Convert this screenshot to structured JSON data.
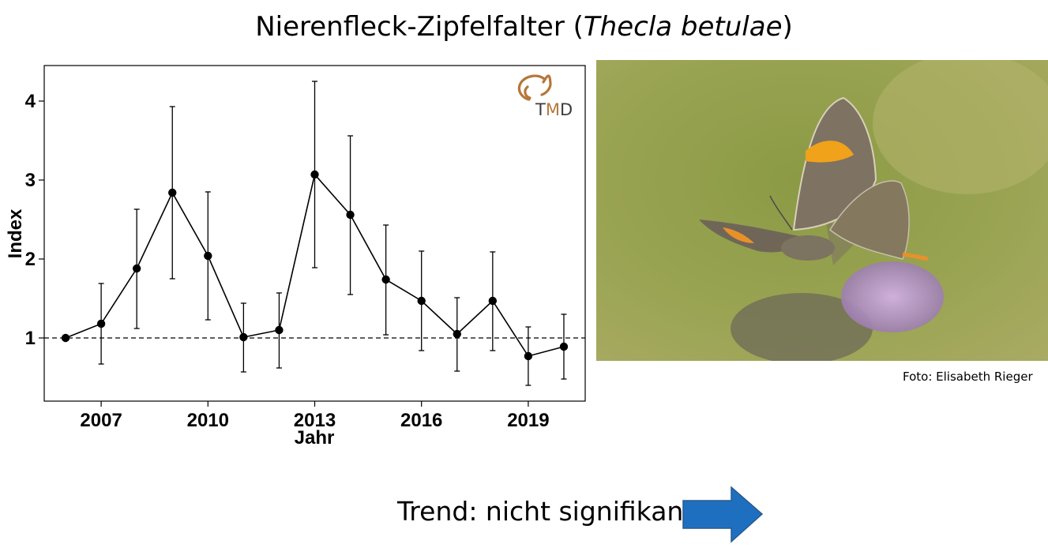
{
  "title": {
    "common_name": "Nierenfleck-Zipfelfalter",
    "open_paren": " (",
    "species": "Thecla betulae",
    "close_paren": ")"
  },
  "logo": {
    "text_t": "T",
    "text_m": "M",
    "text_d": "D",
    "color": "#b5773a"
  },
  "photo": {
    "credit": "Foto: Elisabeth Rieger"
  },
  "trend": {
    "label": "Trend: nicht signifikant",
    "arrow_icon": "right-arrow-icon",
    "arrow_color": "#1f6fc0"
  },
  "chart_data": {
    "type": "line",
    "xlabel": "Jahr",
    "ylabel": "Index",
    "x_ticks": [
      2007,
      2010,
      2013,
      2016,
      2019
    ],
    "y_ticks": [
      1,
      2,
      3,
      4
    ],
    "xlim": [
      2005.4,
      2020.6
    ],
    "ylim": [
      0.2,
      4.45
    ],
    "reference_line": 1,
    "grid": false,
    "series": [
      {
        "points": [
          {
            "x": 2006,
            "y": 1.0,
            "lower": null,
            "upper": null
          },
          {
            "x": 2007,
            "y": 1.18,
            "lower": 0.67,
            "upper": 1.69
          },
          {
            "x": 2008,
            "y": 1.88,
            "lower": 1.12,
            "upper": 2.63
          },
          {
            "x": 2009,
            "y": 2.84,
            "lower": 1.75,
            "upper": 3.93
          },
          {
            "x": 2010,
            "y": 2.04,
            "lower": 1.23,
            "upper": 2.85
          },
          {
            "x": 2011,
            "y": 1.01,
            "lower": 0.57,
            "upper": 1.44
          },
          {
            "x": 2012,
            "y": 1.1,
            "lower": 0.62,
            "upper": 1.57
          },
          {
            "x": 2013,
            "y": 3.07,
            "lower": 1.89,
            "upper": 4.25
          },
          {
            "x": 2014,
            "y": 2.56,
            "lower": 1.55,
            "upper": 3.56
          },
          {
            "x": 2015,
            "y": 1.74,
            "lower": 1.04,
            "upper": 2.43
          },
          {
            "x": 2016,
            "y": 1.47,
            "lower": 0.84,
            "upper": 2.1
          },
          {
            "x": 2017,
            "y": 1.05,
            "lower": 0.58,
            "upper": 1.51
          },
          {
            "x": 2018,
            "y": 1.47,
            "lower": 0.84,
            "upper": 2.09
          },
          {
            "x": 2019,
            "y": 0.77,
            "lower": 0.4,
            "upper": 1.14
          },
          {
            "x": 2020,
            "y": 0.89,
            "lower": 0.48,
            "upper": 1.3
          }
        ]
      }
    ]
  }
}
